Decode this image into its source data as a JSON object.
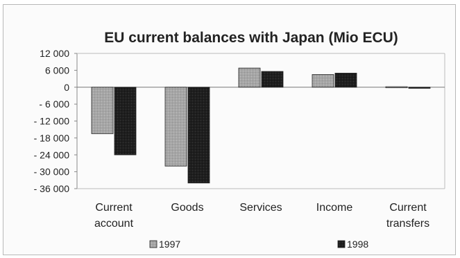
{
  "chart_data": {
    "type": "bar",
    "title": "EU current balances with Japan (Mio ECU)",
    "categories": [
      [
        "Current",
        "account"
      ],
      [
        "Goods"
      ],
      [
        "Services"
      ],
      [
        "Income"
      ],
      [
        "Current",
        "transfers"
      ]
    ],
    "series": [
      {
        "name": "1997",
        "values": [
          -16500,
          -28000,
          6800,
          4500,
          0
        ],
        "color": "#a6a6a6"
      },
      {
        "name": "1998",
        "values": [
          -24000,
          -34000,
          5600,
          5000,
          -400
        ],
        "color": "#1f1f1f"
      }
    ],
    "yticks": [
      12000,
      6000,
      0,
      -6000,
      -12000,
      -18000,
      -24000,
      -30000,
      -36000
    ],
    "ytick_labels": [
      "12 000",
      "6 000",
      "0",
      "- 6 000",
      "- 12 000",
      "- 18 000",
      "- 24 000",
      "- 30 000",
      "- 36 000"
    ],
    "ylim": [
      -36000,
      12000
    ],
    "grid": false,
    "legend_position": "bottom"
  }
}
